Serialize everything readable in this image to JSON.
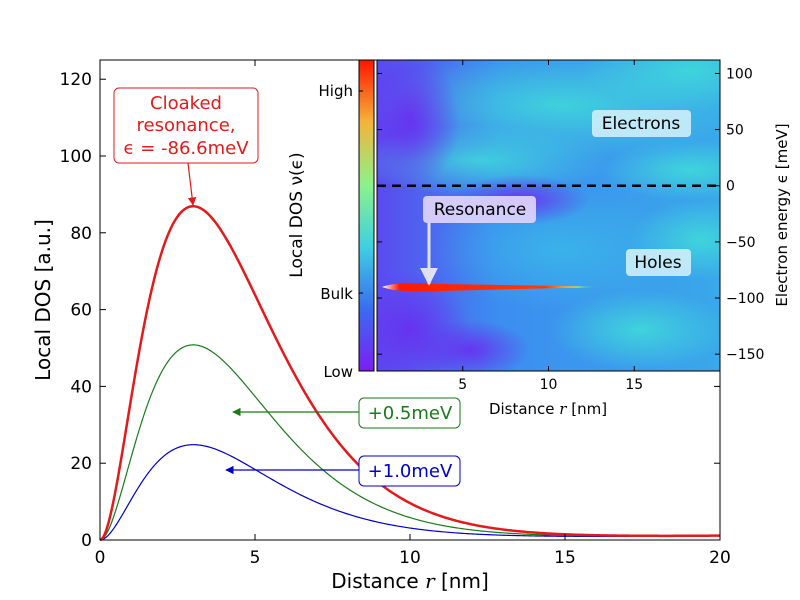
{
  "chart_data": [
    {
      "type": "line",
      "xlabel_text": "Distance ",
      "xlabel_var": "r",
      "xlabel_unit": " [nm]",
      "ylabel": "Local DOS [a.u.]",
      "xlim": [
        0,
        20
      ],
      "ylim": [
        0,
        125
      ],
      "xticks": [
        "0",
        "5",
        "10",
        "15",
        "20"
      ],
      "yticks": [
        "0",
        "20",
        "40",
        "60",
        "80",
        "100",
        "120"
      ],
      "series": [
        {
          "name": "Cloaked resonance",
          "color": "#e31a1c",
          "peak_x": 3.0,
          "peak_y": 86.6,
          "tail_y": 1.1
        },
        {
          "name": "+0.5meV",
          "color": "#1a7a1a",
          "peak_x": 3.0,
          "peak_y": 50.5,
          "tail_y": 1.1
        },
        {
          "name": "+1.0meV",
          "color": "#0000cc",
          "peak_x": 3.0,
          "peak_y": 24.5,
          "tail_y": 1.1
        }
      ],
      "annotations": {
        "cloaked_line1": "Cloaked",
        "cloaked_line2": "resonance,",
        "cloaked_line3": "ϵ = -86.6meV",
        "green_label": "+0.5meV",
        "blue_label": "+1.0meV"
      }
    },
    {
      "type": "heatmap",
      "xlabel_text": "Distance ",
      "xlabel_var": "r",
      "xlabel_unit": " [nm]",
      "ylabel": "Electron energy ϵ [meV]",
      "xlim": [
        0,
        20
      ],
      "ylim": [
        -165,
        112
      ],
      "xticks": [
        "5",
        "10",
        "15"
      ],
      "yticks": [
        "100",
        "50",
        "0",
        "−50",
        "−100",
        "−150"
      ],
      "fermi_level": 0,
      "labels": {
        "electrons": "Electrons",
        "holes": "Holes",
        "resonance": "Resonance"
      },
      "resonance_energy": -86.6,
      "colorbar": {
        "label": "Local DOS ν(ϵ)",
        "ticks": [
          "High",
          "Bulk",
          "Low"
        ]
      }
    }
  ]
}
